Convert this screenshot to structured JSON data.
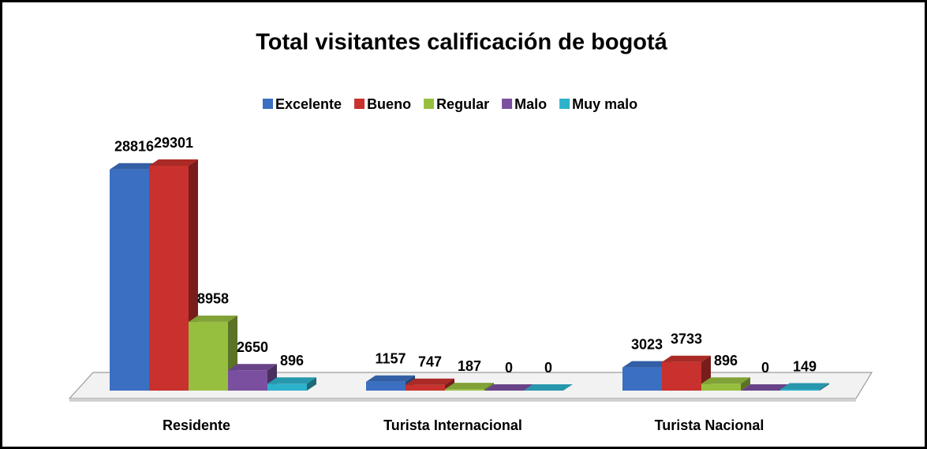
{
  "chart_data": {
    "type": "bar3d",
    "title": "Total visitantes calificación de bogotá",
    "categories": [
      "Residente",
      "Turista Internacional",
      "Turista Nacional"
    ],
    "series": [
      {
        "name": "Excelente",
        "color": "#3b6fc2",
        "values": [
          28816,
          1157,
          3023
        ]
      },
      {
        "name": "Bueno",
        "color": "#c8312d",
        "values": [
          29301,
          747,
          3733
        ]
      },
      {
        "name": "Regular",
        "color": "#97bf3f",
        "values": [
          8958,
          187,
          896
        ]
      },
      {
        "name": "Malo",
        "color": "#7a4f9f",
        "values": [
          2650,
          0,
          0
        ]
      },
      {
        "name": "Muy malo",
        "color": "#2db2cb",
        "values": [
          896,
          0,
          149
        ]
      }
    ],
    "legend": "top"
  }
}
